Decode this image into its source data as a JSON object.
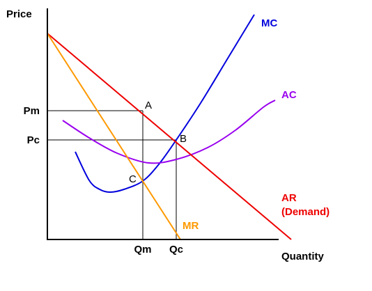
{
  "chart_data": {
    "type": "line",
    "ylabel": "Price",
    "xlabel": "Quantity",
    "grid": false,
    "x_ticks": [
      {
        "label": "Qm",
        "value": 137
      },
      {
        "label": "Qc",
        "value": 185
      }
    ],
    "y_ticks": [
      {
        "label": "Pm",
        "value": 185
      },
      {
        "label": "Pc",
        "value": 143
      }
    ],
    "series": [
      {
        "name": "MC",
        "color": "#0000dd",
        "points": [
          [
            40,
            126
          ],
          [
            60,
            85
          ],
          [
            75,
            72
          ],
          [
            90,
            68
          ],
          [
            110,
            72
          ],
          [
            137,
            84
          ],
          [
            160,
            108
          ],
          [
            185,
            143
          ],
          [
            220,
            196
          ],
          [
            260,
            262
          ],
          [
            297,
            323
          ]
        ]
      },
      {
        "name": "AC",
        "color": "#9900ee",
        "points": [
          [
            22,
            171
          ],
          [
            60,
            146
          ],
          [
            100,
            124
          ],
          [
            145,
            110
          ],
          [
            185,
            115
          ],
          [
            230,
            132
          ],
          [
            270,
            157
          ],
          [
            310,
            190
          ],
          [
            327,
            200
          ]
        ]
      },
      {
        "name": "AR\n(Demand)",
        "color": "#ee0000",
        "points": [
          [
            0,
            296
          ],
          [
            137,
            185
          ],
          [
            185,
            143
          ],
          [
            350,
            0
          ]
        ]
      },
      {
        "name": "MR",
        "color": "#ff9900",
        "points": [
          [
            0,
            296
          ],
          [
            137,
            84
          ],
          [
            191,
            0
          ]
        ]
      }
    ],
    "points": [
      {
        "label": "A",
        "x": 137,
        "y": 185
      },
      {
        "label": "B",
        "x": 185,
        "y": 143
      },
      {
        "label": "C",
        "x": 137,
        "y": 84
      }
    ]
  }
}
